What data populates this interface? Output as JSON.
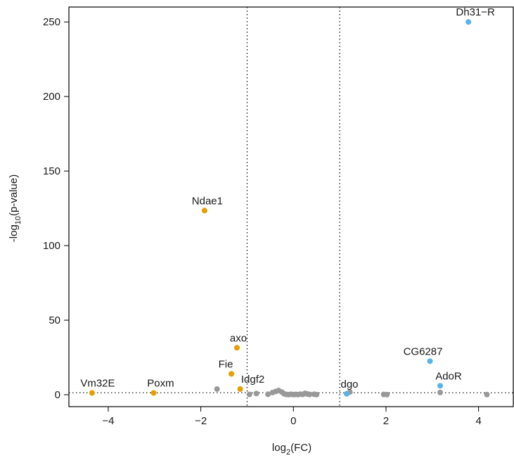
{
  "chart_data": {
    "type": "scatter",
    "xlabel": {
      "main": "log",
      "sub": "2",
      "tail": "(FC)"
    },
    "ylabel": {
      "main": "-log",
      "sub": "10",
      "tail": "(p-value)"
    },
    "xlim": [
      -4.85,
      4.75
    ],
    "ylim": [
      -8,
      260
    ],
    "xticks": [
      -4,
      -2,
      0,
      2,
      4
    ],
    "xtick_labels": [
      "−4",
      "−2",
      "0",
      "2",
      "4"
    ],
    "yticks": [
      0,
      50,
      100,
      150,
      200,
      250
    ],
    "ytick_labels": [
      "0",
      "50",
      "100",
      "150",
      "200",
      "250"
    ],
    "vlines": [
      -1,
      1
    ],
    "hline": 1.3,
    "grid": false,
    "colors": {
      "down": "#e69f00",
      "up": "#56b4e9",
      "ns": "#999999"
    },
    "series": [
      {
        "group": "down",
        "points": [
          {
            "x": -4.35,
            "y": 1.2,
            "label": "Vm32E"
          },
          {
            "x": -3.02,
            "y": 1.2,
            "label": "Poxm"
          },
          {
            "x": -1.92,
            "y": 123.5,
            "label": "Ndae1"
          },
          {
            "x": -1.22,
            "y": 31.5,
            "label": "axo"
          },
          {
            "x": -1.34,
            "y": 14.0,
            "label": "Fie"
          },
          {
            "x": -1.15,
            "y": 3.8,
            "label": "Idgf2"
          }
        ]
      },
      {
        "group": "up",
        "points": [
          {
            "x": 3.78,
            "y": 250.0,
            "label": "Dh31−R"
          },
          {
            "x": 2.95,
            "y": 22.5,
            "label": "CG6287"
          },
          {
            "x": 3.17,
            "y": 6.0,
            "label": "AdoR"
          },
          {
            "x": 1.15,
            "y": 0.6,
            "label": "dgo"
          }
        ]
      },
      {
        "group": "ns",
        "points": [
          {
            "x": -1.65,
            "y": 3.8
          },
          {
            "x": -0.95,
            "y": 0.2
          },
          {
            "x": -0.8,
            "y": 0.8
          },
          {
            "x": -0.55,
            "y": 0.3
          },
          {
            "x": -0.45,
            "y": 1.5
          },
          {
            "x": -0.38,
            "y": 2.2
          },
          {
            "x": -0.32,
            "y": 2.8
          },
          {
            "x": -0.25,
            "y": 1.8
          },
          {
            "x": -0.2,
            "y": 0.6
          },
          {
            "x": -0.15,
            "y": 0.2
          },
          {
            "x": -0.1,
            "y": 0.1
          },
          {
            "x": -0.05,
            "y": 0.3
          },
          {
            "x": 0.0,
            "y": 0.1
          },
          {
            "x": 0.05,
            "y": 0.2
          },
          {
            "x": 0.1,
            "y": 0.1
          },
          {
            "x": 0.15,
            "y": 0.4
          },
          {
            "x": 0.2,
            "y": 0.2
          },
          {
            "x": 0.25,
            "y": 0.9
          },
          {
            "x": 0.3,
            "y": 0.5
          },
          {
            "x": 0.35,
            "y": 0.2
          },
          {
            "x": 0.45,
            "y": 0.3
          },
          {
            "x": 0.5,
            "y": 0.1
          },
          {
            "x": 1.22,
            "y": 1.8
          },
          {
            "x": 1.95,
            "y": 0.2
          },
          {
            "x": 2.02,
            "y": 0.1
          },
          {
            "x": 3.17,
            "y": 1.5
          },
          {
            "x": 4.18,
            "y": 0.1
          }
        ]
      }
    ],
    "label_offsets": {
      "Vm32E": [
        8,
        -9
      ],
      "Poxm": [
        10,
        -9
      ],
      "Ndae1": [
        4,
        -9
      ],
      "axo": [
        2,
        -9
      ],
      "Fie": [
        -8,
        -9
      ],
      "Idgf2": [
        18,
        -9
      ],
      "Dh31−R": [
        10,
        -9
      ],
      "CG6287": [
        -10,
        -9
      ],
      "AdoR": [
        12,
        -9
      ],
      "dgo": [
        4,
        -9
      ]
    }
  }
}
